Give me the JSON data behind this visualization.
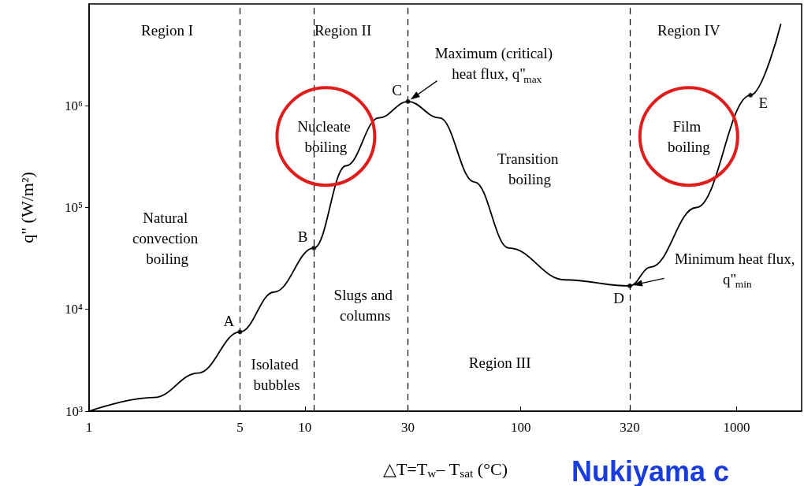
{
  "chart_data": {
    "type": "line",
    "xlabel": "△T=T$_{w}$– T$_{sat}$ (°C)",
    "ylabel": "q\" (W/m²)",
    "log": "xy",
    "xlim": [
      1,
      2000
    ],
    "xticks": [
      1,
      5,
      10,
      30,
      100,
      320,
      1000
    ],
    "ylim": [
      1000,
      10000000
    ],
    "yticks": [
      {
        "value": 1000,
        "label": "10³"
      },
      {
        "value": 10000,
        "label": "10⁴"
      },
      {
        "value": 100000,
        "label": "10⁵"
      },
      {
        "value": 1000000,
        "label": "10⁶"
      }
    ],
    "grid": false,
    "series": [
      {
        "color": "#000000",
        "marker": "none",
        "line_style": "solid",
        "x": [
          1,
          2,
          3.2,
          5,
          7.2,
          11,
          15.5,
          22,
          30,
          42,
          61,
          88,
          160,
          320,
          400,
          650,
          1160,
          1600
        ],
        "values": [
          1000,
          1365,
          2370,
          6000,
          14800,
          40000,
          257000,
          760000,
          1100000,
          760000,
          178000,
          40000,
          19500,
          17000,
          26000,
          100000,
          1270000,
          6300000
        ]
      },
      {
        "type": "scatter",
        "color": "#000000",
        "marker": "circle",
        "x": [
          5,
          11,
          30,
          320,
          1160
        ],
        "values": [
          6000,
          40000,
          1100000,
          17000,
          1270000
        ]
      }
    ],
    "ref_lines": [
      {
        "axis": "x",
        "value": 5,
        "color": "#000000",
        "line_style": "dashed"
      },
      {
        "axis": "x",
        "value": 11,
        "color": "#000000",
        "line_style": "dashed"
      },
      {
        "axis": "x",
        "value": 30,
        "color": "#000000",
        "line_style": "dashed"
      },
      {
        "axis": "x",
        "value": 320,
        "color": "#000000",
        "line_style": "dashed"
      }
    ],
    "annotations": [
      "Region I",
      "Region II",
      "Region III",
      "Region IV",
      "Nucleate boiling",
      "Transition boiling",
      "Film boiling",
      "Natural convection boiling",
      "Slugs and columns",
      "Isolated bubbles",
      {
        "text": "Maximum (critical) heat flux, q\"$_{max}$",
        "x": 30,
        "y": 1100000
      },
      {
        "text": "Minimum heat flux, q\"$_{min}$",
        "x": 320,
        "y": 17000
      },
      {
        "text": "A",
        "x": 5,
        "y": 6000
      },
      {
        "text": "B",
        "x": 11,
        "y": 40000
      },
      {
        "text": "C",
        "x": 30,
        "y": 1100000
      },
      {
        "text": "D",
        "x": 320,
        "y": 17000
      },
      {
        "text": "E",
        "x": 1160,
        "y": 1270000
      },
      "Nukiyama c"
    ]
  }
}
